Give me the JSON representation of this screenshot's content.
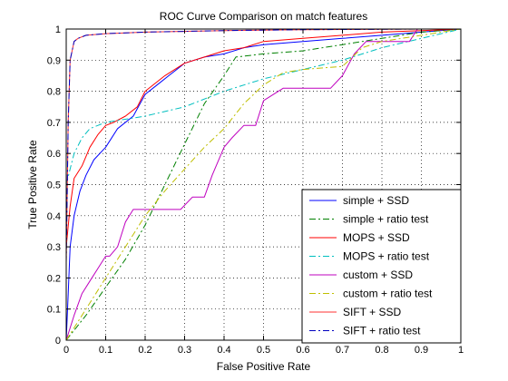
{
  "chart_data": {
    "type": "line",
    "title": "ROC Curve Comparison on match features",
    "xlabel": "False Positive Rate",
    "ylabel": "True Positive Rate",
    "xlim": [
      0,
      1
    ],
    "ylim": [
      0,
      1
    ],
    "grid": true,
    "legend_position": "bottom-right",
    "xticks": [
      "0",
      "0.1",
      "0.2",
      "0.3",
      "0.4",
      "0.5",
      "0.6",
      "0.7",
      "0.8",
      "0.9",
      "1"
    ],
    "yticks": [
      "0",
      "0.1",
      "0.2",
      "0.3",
      "0.4",
      "0.5",
      "0.6",
      "0.7",
      "0.8",
      "0.9",
      "1"
    ],
    "series": [
      {
        "name": "simple + SSD",
        "color": "#0000ff",
        "dash": "solid",
        "points": [
          [
            0,
            0
          ],
          [
            0.005,
            0.15
          ],
          [
            0.01,
            0.3
          ],
          [
            0.02,
            0.4
          ],
          [
            0.035,
            0.48
          ],
          [
            0.05,
            0.53
          ],
          [
            0.07,
            0.58
          ],
          [
            0.1,
            0.62
          ],
          [
            0.13,
            0.68
          ],
          [
            0.17,
            0.72
          ],
          [
            0.2,
            0.79
          ],
          [
            0.23,
            0.82
          ],
          [
            0.26,
            0.85
          ],
          [
            0.28,
            0.87
          ],
          [
            0.3,
            0.89
          ],
          [
            0.35,
            0.91
          ],
          [
            0.4,
            0.92
          ],
          [
            0.45,
            0.94
          ],
          [
            0.5,
            0.95
          ],
          [
            0.6,
            0.96
          ],
          [
            0.7,
            0.97
          ],
          [
            0.8,
            0.98
          ],
          [
            0.9,
            0.99
          ],
          [
            1,
            1
          ]
        ]
      },
      {
        "name": "simple + ratio test",
        "color": "#008000",
        "dash": "dashdot",
        "points": [
          [
            0,
            0
          ],
          [
            0.05,
            0.08
          ],
          [
            0.1,
            0.17
          ],
          [
            0.15,
            0.26
          ],
          [
            0.2,
            0.37
          ],
          [
            0.25,
            0.5
          ],
          [
            0.3,
            0.63
          ],
          [
            0.35,
            0.76
          ],
          [
            0.4,
            0.85
          ],
          [
            0.43,
            0.91
          ],
          [
            0.5,
            0.92
          ],
          [
            0.6,
            0.93
          ],
          [
            0.7,
            0.95
          ],
          [
            0.8,
            0.97
          ],
          [
            0.9,
            0.99
          ],
          [
            1,
            1
          ]
        ]
      },
      {
        "name": "MOPS + SSD",
        "color": "#ff0000",
        "dash": "solid",
        "points": [
          [
            0,
            0.3
          ],
          [
            0.01,
            0.43
          ],
          [
            0.02,
            0.52
          ],
          [
            0.04,
            0.56
          ],
          [
            0.06,
            0.62
          ],
          [
            0.08,
            0.66
          ],
          [
            0.1,
            0.69
          ],
          [
            0.12,
            0.7
          ],
          [
            0.15,
            0.72
          ],
          [
            0.18,
            0.75
          ],
          [
            0.2,
            0.8
          ],
          [
            0.25,
            0.85
          ],
          [
            0.3,
            0.89
          ],
          [
            0.35,
            0.91
          ],
          [
            0.4,
            0.93
          ],
          [
            0.45,
            0.94
          ],
          [
            0.5,
            0.96
          ],
          [
            0.6,
            0.97
          ],
          [
            0.7,
            0.98
          ],
          [
            0.8,
            0.99
          ],
          [
            0.9,
            0.995
          ],
          [
            1,
            1
          ]
        ]
      },
      {
        "name": "MOPS + ratio test",
        "color": "#00bfbf",
        "dash": "dashdot",
        "points": [
          [
            0,
            0.5
          ],
          [
            0.01,
            0.55
          ],
          [
            0.02,
            0.6
          ],
          [
            0.04,
            0.65
          ],
          [
            0.06,
            0.68
          ],
          [
            0.08,
            0.69
          ],
          [
            0.1,
            0.7
          ],
          [
            0.2,
            0.72
          ],
          [
            0.3,
            0.75
          ],
          [
            0.4,
            0.8
          ],
          [
            0.5,
            0.84
          ],
          [
            0.6,
            0.87
          ],
          [
            0.7,
            0.9
          ],
          [
            0.8,
            0.94
          ],
          [
            0.9,
            0.97
          ],
          [
            1,
            1
          ]
        ]
      },
      {
        "name": "custom + SSD",
        "color": "#bf00bf",
        "dash": "solid",
        "points": [
          [
            0,
            0
          ],
          [
            0.02,
            0.08
          ],
          [
            0.04,
            0.15
          ],
          [
            0.06,
            0.19
          ],
          [
            0.08,
            0.23
          ],
          [
            0.1,
            0.27
          ],
          [
            0.11,
            0.27
          ],
          [
            0.13,
            0.3
          ],
          [
            0.15,
            0.38
          ],
          [
            0.17,
            0.42
          ],
          [
            0.2,
            0.42
          ],
          [
            0.25,
            0.42
          ],
          [
            0.29,
            0.42
          ],
          [
            0.32,
            0.46
          ],
          [
            0.35,
            0.46
          ],
          [
            0.37,
            0.53
          ],
          [
            0.4,
            0.62
          ],
          [
            0.42,
            0.65
          ],
          [
            0.45,
            0.69
          ],
          [
            0.48,
            0.69
          ],
          [
            0.5,
            0.77
          ],
          [
            0.55,
            0.81
          ],
          [
            0.6,
            0.81
          ],
          [
            0.65,
            0.81
          ],
          [
            0.67,
            0.81
          ],
          [
            0.7,
            0.85
          ],
          [
            0.73,
            0.92
          ],
          [
            0.76,
            0.96
          ],
          [
            0.8,
            0.96
          ],
          [
            0.85,
            0.96
          ],
          [
            0.87,
            0.96
          ],
          [
            0.89,
            1
          ],
          [
            0.95,
            1
          ],
          [
            1,
            1
          ]
        ]
      },
      {
        "name": "custom + ratio test",
        "color": "#bfbf00",
        "dash": "dashdot",
        "points": [
          [
            0,
            0
          ],
          [
            0.05,
            0.1
          ],
          [
            0.1,
            0.2
          ],
          [
            0.15,
            0.3
          ],
          [
            0.2,
            0.4
          ],
          [
            0.25,
            0.48
          ],
          [
            0.3,
            0.55
          ],
          [
            0.35,
            0.62
          ],
          [
            0.4,
            0.68
          ],
          [
            0.45,
            0.76
          ],
          [
            0.5,
            0.82
          ],
          [
            0.55,
            0.86
          ],
          [
            0.6,
            0.87
          ],
          [
            0.7,
            0.88
          ],
          [
            0.75,
            0.94
          ],
          [
            0.8,
            0.96
          ],
          [
            0.9,
            0.98
          ],
          [
            1,
            1
          ]
        ]
      },
      {
        "name": "SIFT + SSD",
        "color": "#ff3333",
        "dash": "solid",
        "points": [
          [
            0,
            0.25
          ],
          [
            0.005,
            0.7
          ],
          [
            0.01,
            0.9
          ],
          [
            0.02,
            0.96
          ],
          [
            0.03,
            0.97
          ],
          [
            0.05,
            0.98
          ],
          [
            0.1,
            0.985
          ],
          [
            0.2,
            0.99
          ],
          [
            0.4,
            0.995
          ],
          [
            0.6,
            0.998
          ],
          [
            0.8,
            0.999
          ],
          [
            0.9,
            1
          ],
          [
            1,
            1
          ]
        ]
      },
      {
        "name": "SIFT + ratio test",
        "color": "#0000bf",
        "dash": "dashdot",
        "points": [
          [
            0,
            0.25
          ],
          [
            0.005,
            0.7
          ],
          [
            0.01,
            0.9
          ],
          [
            0.02,
            0.96
          ],
          [
            0.03,
            0.97
          ],
          [
            0.05,
            0.98
          ],
          [
            0.1,
            0.985
          ],
          [
            0.2,
            0.99
          ],
          [
            0.4,
            0.995
          ],
          [
            0.6,
            0.998
          ],
          [
            0.8,
            0.999
          ],
          [
            0.9,
            1
          ],
          [
            1,
            1
          ]
        ]
      }
    ]
  }
}
